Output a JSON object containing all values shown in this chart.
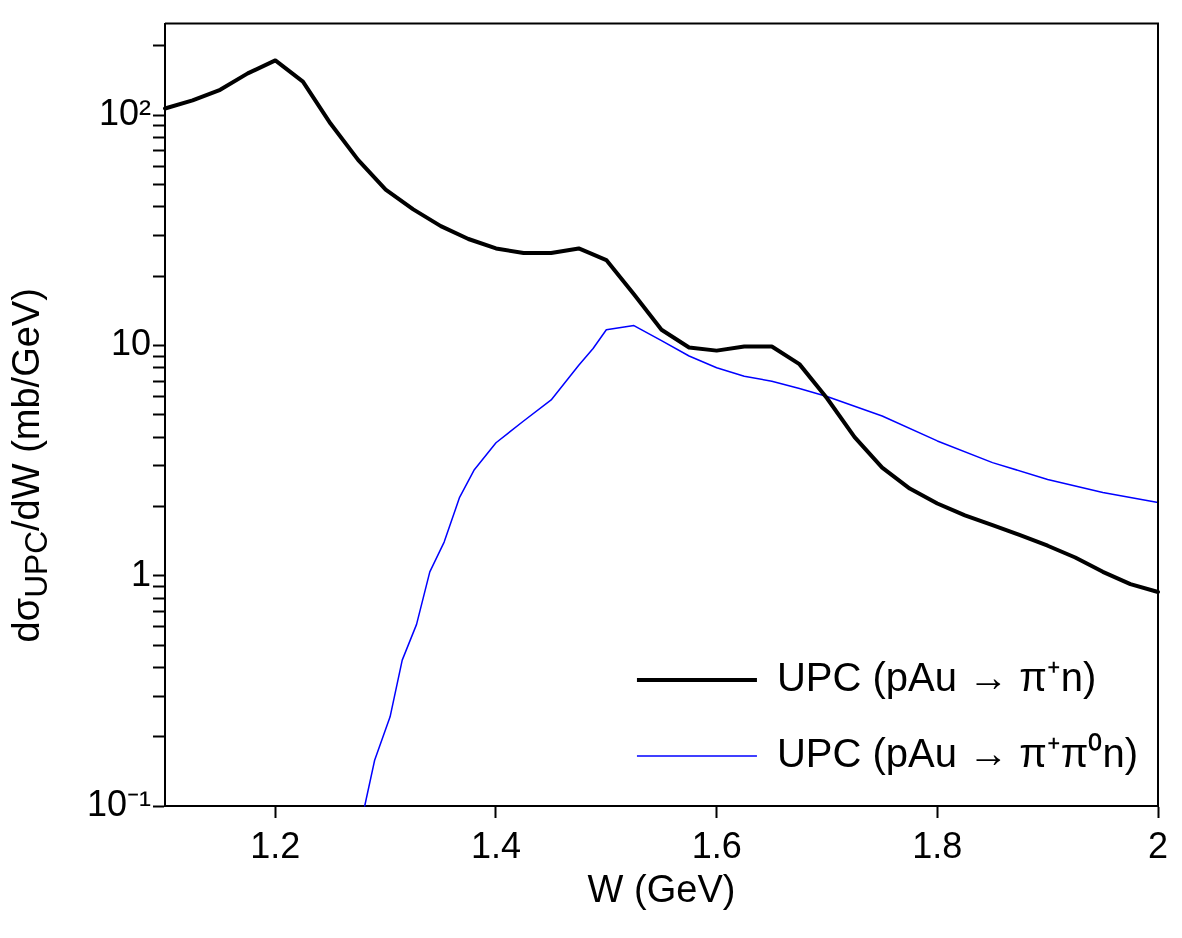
{
  "chart_data": {
    "type": "line",
    "xlabel": "W (GeV)",
    "ylabel": "dσ$_{UPC}$/dW (mb/GeV)",
    "xlim": [
      1.1,
      2
    ],
    "xticks": [
      1.2,
      1.4,
      1.6,
      1.8,
      2
    ],
    "ylim": [
      0.1,
      250
    ],
    "log": "y",
    "yticks": [
      {
        "value": 0.1,
        "label": "10⁻¹"
      },
      {
        "value": 0.2,
        "label": null
      },
      {
        "value": 0.3,
        "label": null
      },
      {
        "value": 0.4,
        "label": null
      },
      {
        "value": 0.5,
        "label": null
      },
      {
        "value": 0.6,
        "label": null
      },
      {
        "value": 0.7,
        "label": null
      },
      {
        "value": 0.8,
        "label": null
      },
      {
        "value": 0.9,
        "label": null
      },
      1,
      {
        "value": 2,
        "label": null
      },
      {
        "value": 3,
        "label": null
      },
      {
        "value": 4,
        "label": null
      },
      {
        "value": 5,
        "label": null
      },
      {
        "value": 6,
        "label": null
      },
      {
        "value": 7,
        "label": null
      },
      {
        "value": 8,
        "label": null
      },
      {
        "value": 9,
        "label": null
      },
      10,
      {
        "value": 20,
        "label": null
      },
      {
        "value": 30,
        "label": null
      },
      {
        "value": 40,
        "label": null
      },
      {
        "value": 50,
        "label": null
      },
      {
        "value": 60,
        "label": null
      },
      {
        "value": 70,
        "label": null
      },
      {
        "value": 80,
        "label": null
      },
      {
        "value": 90,
        "label": null
      },
      {
        "value": 100,
        "label": "10²"
      },
      {
        "value": 200,
        "label": null
      }
    ],
    "grid": false,
    "legend": "bottom right",
    "marker": "none",
    "line_style": "solid",
    "series": [
      {
        "name": "UPC (pAu → π⁺n)",
        "color": "#000000",
        "x": [
          1.1,
          1.125,
          1.15,
          1.175,
          1.2,
          1.225,
          1.25,
          1.275,
          1.3,
          1.325,
          1.35,
          1.375,
          1.4,
          1.425,
          1.45,
          1.475,
          1.5,
          1.525,
          1.55,
          1.575,
          1.6,
          1.625,
          1.65,
          1.675,
          1.7,
          1.725,
          1.75,
          1.775,
          1.8,
          1.825,
          1.85,
          1.875,
          1.9,
          1.925,
          1.95,
          1.975,
          2.0
        ],
        "values": [
          107,
          116,
          129,
          152,
          173,
          140,
          92,
          64,
          47.5,
          39,
          33,
          29,
          26.4,
          25.2,
          25.2,
          26.4,
          23.5,
          16.7,
          11.7,
          9.8,
          9.5,
          9.9,
          9.9,
          8.3,
          5.9,
          4.0,
          2.95,
          2.39,
          2.06,
          1.83,
          1.66,
          1.5,
          1.35,
          1.2,
          1.04,
          0.92,
          0.85
        ]
      },
      {
        "name": "UPC (pAu → π⁺π⁰n)",
        "color": "#0000ff",
        "x": [
          1.281,
          1.29,
          1.304,
          1.315,
          1.328,
          1.34,
          1.353,
          1.367,
          1.38,
          1.4,
          1.425,
          1.45,
          1.475,
          1.488,
          1.5,
          1.525,
          1.55,
          1.575,
          1.6,
          1.625,
          1.65,
          1.675,
          1.7,
          1.75,
          1.8,
          1.85,
          1.9,
          1.95,
          2.0
        ],
        "values": [
          0.1,
          0.158,
          0.244,
          0.43,
          0.615,
          1.04,
          1.4,
          2.19,
          2.87,
          3.78,
          4.7,
          5.8,
          8.2,
          9.7,
          11.7,
          12.2,
          10.5,
          9.0,
          8.0,
          7.35,
          7.0,
          6.5,
          6.0,
          4.94,
          3.85,
          3.1,
          2.62,
          2.3,
          2.08
        ]
      }
    ]
  }
}
